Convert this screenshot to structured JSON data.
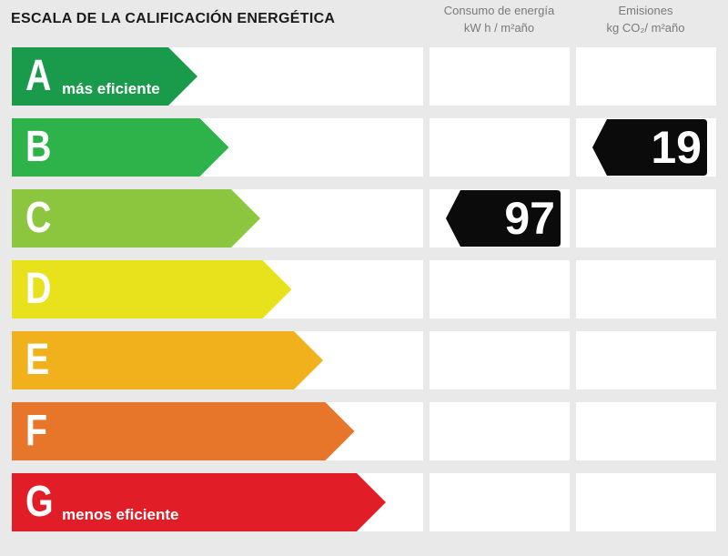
{
  "chart_data": {
    "type": "energy-rating",
    "title": "ESCALA DE LA CALIFICACIÓN ENERGÉTICA",
    "columns": [
      {
        "key": "consumo",
        "label": "Consumo de energía",
        "unit": "kW h / m²año"
      },
      {
        "key": "emisiones",
        "label": "Emisiones",
        "unit": "kg CO₂/ m²año"
      }
    ],
    "bands": [
      {
        "letter": "A",
        "label": "más eficiente",
        "color": "#1a9a4b"
      },
      {
        "letter": "B",
        "label": "",
        "color": "#2eb34a"
      },
      {
        "letter": "C",
        "label": "",
        "color": "#8cc63f"
      },
      {
        "letter": "D",
        "label": "",
        "color": "#e8e21c"
      },
      {
        "letter": "E",
        "label": "",
        "color": "#f0b11d"
      },
      {
        "letter": "F",
        "label": "",
        "color": "#e7752a"
      },
      {
        "letter": "G",
        "label": "menos eficiente",
        "color": "#e11e27"
      }
    ],
    "ratings": [
      {
        "column": "consumo",
        "band": "C",
        "value": "97"
      },
      {
        "column": "emisiones",
        "band": "B",
        "value": "19"
      }
    ]
  }
}
